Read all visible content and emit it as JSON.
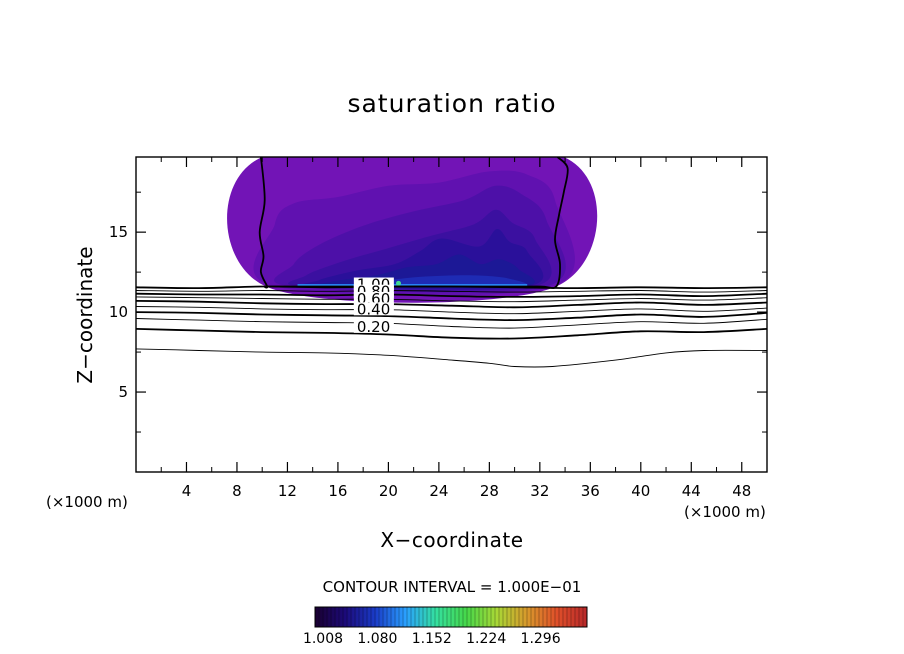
{
  "chart_data": {
    "type": "contour",
    "title": "saturation ratio",
    "xlabel": "X−coordinate",
    "ylabel": "Z−coordinate",
    "x_unit_left": "(×1000 m)",
    "x_unit_right": "(×1000 m)",
    "xlim": [
      0,
      50
    ],
    "ylim": [
      0,
      19.7
    ],
    "x_ticks": [
      {
        "v": 4,
        "label": "4"
      },
      {
        "v": 8,
        "label": "8"
      },
      {
        "v": 12,
        "label": "12"
      },
      {
        "v": 16,
        "label": "16"
      },
      {
        "v": 20,
        "label": "20"
      },
      {
        "v": 24,
        "label": "24"
      },
      {
        "v": 28,
        "label": "28"
      },
      {
        "v": 32,
        "label": "32"
      },
      {
        "v": 36,
        "label": "36"
      },
      {
        "v": 40,
        "label": "40"
      },
      {
        "v": 44,
        "label": "44"
      },
      {
        "v": 48,
        "label": "48"
      }
    ],
    "y_ticks": [
      {
        "v": 5,
        "label": "5"
      },
      {
        "v": 10,
        "label": "10"
      },
      {
        "v": 15,
        "label": "15"
      }
    ],
    "contour_interval_text": "CONTOUR INTERVAL = 1.000E−01",
    "colorbar": {
      "labels": [
        "1.008",
        "1.080",
        "1.152",
        "1.224",
        "1.296"
      ],
      "colors": [
        "#1a0030",
        "#1c0a7a",
        "#1a3cc8",
        "#2aa0ff",
        "#34e0a0",
        "#46d84a",
        "#a8d836",
        "#d89a2c",
        "#e0502a",
        "#b8282a"
      ]
    },
    "contour_labels": [
      {
        "text": "1.00",
        "x": 17.5,
        "z": 11.6
      },
      {
        "text": "0.80",
        "x": 17.5,
        "z": 11.15
      },
      {
        "text": "0.60",
        "x": 17.5,
        "z": 10.7
      },
      {
        "text": "0.40",
        "x": 17.5,
        "z": 10.05
      },
      {
        "text": "0.20",
        "x": 17.5,
        "z": 8.95
      }
    ],
    "contour_lines": [
      {
        "level": 1.0,
        "thick": true,
        "x": [
          0,
          5,
          10,
          15,
          20,
          25,
          30,
          35,
          40,
          45,
          50
        ],
        "z": [
          11.55,
          11.5,
          11.6,
          11.55,
          11.6,
          11.6,
          11.55,
          11.5,
          11.55,
          11.5,
          11.55
        ]
      },
      {
        "level": 0.9,
        "thick": false,
        "x": [
          0,
          5,
          10,
          15,
          20,
          25,
          30,
          35,
          40,
          45,
          50
        ],
        "z": [
          11.35,
          11.3,
          11.35,
          11.3,
          11.35,
          11.3,
          11.25,
          11.3,
          11.35,
          11.25,
          11.35
        ]
      },
      {
        "level": 0.8,
        "thick": true,
        "x": [
          0,
          5,
          10,
          15,
          20,
          25,
          30,
          35,
          40,
          45,
          50
        ],
        "z": [
          11.15,
          11.1,
          11.1,
          11.05,
          11.1,
          11.0,
          10.95,
          11.0,
          11.1,
          11.0,
          11.15
        ]
      },
      {
        "level": 0.7,
        "thick": false,
        "x": [
          0,
          5,
          10,
          15,
          20,
          25,
          30,
          35,
          40,
          45,
          50
        ],
        "z": [
          10.95,
          10.9,
          10.85,
          10.8,
          10.8,
          10.7,
          10.65,
          10.75,
          10.85,
          10.75,
          10.9
        ]
      },
      {
        "level": 0.6,
        "thick": true,
        "x": [
          0,
          5,
          10,
          15,
          20,
          25,
          30,
          35,
          40,
          45,
          50
        ],
        "z": [
          10.7,
          10.65,
          10.55,
          10.5,
          10.5,
          10.4,
          10.3,
          10.45,
          10.6,
          10.45,
          10.6
        ]
      },
      {
        "level": 0.5,
        "thick": false,
        "x": [
          0,
          5,
          10,
          15,
          20,
          25,
          30,
          35,
          40,
          45,
          50
        ],
        "z": [
          10.35,
          10.3,
          10.2,
          10.15,
          10.15,
          10.0,
          9.9,
          10.05,
          10.2,
          10.05,
          10.25
        ]
      },
      {
        "level": 0.4,
        "thick": true,
        "x": [
          0,
          5,
          10,
          15,
          20,
          25,
          30,
          35,
          40,
          45,
          50
        ],
        "z": [
          10.0,
          9.95,
          9.85,
          9.8,
          9.75,
          9.6,
          9.5,
          9.65,
          9.85,
          9.7,
          9.95
        ]
      },
      {
        "level": 0.3,
        "thick": false,
        "x": [
          0,
          5,
          10,
          15,
          20,
          25,
          30,
          35,
          40,
          45,
          50
        ],
        "z": [
          9.6,
          9.5,
          9.4,
          9.35,
          9.3,
          9.1,
          9.0,
          9.2,
          9.4,
          9.3,
          9.55
        ]
      },
      {
        "level": 0.2,
        "thick": true,
        "x": [
          0,
          5,
          10,
          15,
          20,
          25,
          30,
          35,
          40,
          45,
          50
        ],
        "z": [
          8.95,
          8.85,
          8.75,
          8.7,
          8.6,
          8.4,
          8.35,
          8.55,
          8.8,
          8.75,
          8.95
        ]
      },
      {
        "level": 0.1,
        "thick": false,
        "x": [
          0,
          5,
          10,
          15,
          20,
          25,
          28,
          30,
          33,
          38,
          42,
          45,
          50
        ],
        "z": [
          7.7,
          7.6,
          7.5,
          7.45,
          7.3,
          7.0,
          6.8,
          6.6,
          6.6,
          7.0,
          7.45,
          7.6,
          7.6
        ]
      }
    ],
    "cloud_region": {
      "x": [
        9.9,
        10.2,
        9.8,
        10.1,
        9.9,
        10.4,
        10.3,
        12.0,
        20.0,
        28.0,
        32.0,
        33.3,
        33.6,
        33.2,
        33.5,
        33.9,
        34.2,
        33.4
      ],
      "z": [
        19.7,
        17.0,
        15.0,
        13.5,
        12.5,
        11.6,
        11.6,
        11.6,
        11.6,
        11.6,
        11.6,
        11.6,
        13.0,
        14.5,
        16.0,
        17.5,
        19.0,
        19.7
      ]
    },
    "cloud_layers": [
      {
        "color": "#7214b6",
        "x": [
          10.3,
          33.3,
          33.9,
          10.0
        ],
        "z": [
          11.6,
          11.6,
          19.7,
          19.7
        ]
      },
      {
        "color": "#6011b0",
        "x": [
          11.0,
          33.0,
          33.2,
          31.0,
          28.0,
          24.0,
          20.0,
          16.0,
          12.5,
          11.0
        ],
        "z": [
          11.6,
          11.6,
          17.0,
          18.6,
          18.8,
          18.1,
          17.9,
          17.2,
          16.8,
          15.5
        ]
      },
      {
        "color": "#4d10a8",
        "x": [
          12.5,
          32.5,
          32.5,
          30.5,
          28.5,
          26.0,
          22.0,
          18.0,
          14.5,
          12.5
        ],
        "z": [
          11.6,
          11.6,
          15.8,
          17.4,
          17.9,
          17.0,
          16.3,
          15.4,
          14.2,
          13.0
        ]
      },
      {
        "color": "#3b10a0",
        "x": [
          13.5,
          31.5,
          31.6,
          29.8,
          28.5,
          26.8,
          23.5,
          20.0,
          16.5,
          13.5
        ],
        "z": [
          11.6,
          11.6,
          14.6,
          15.6,
          16.4,
          15.5,
          14.8,
          14.0,
          13.2,
          12.3
        ]
      },
      {
        "color": "#2a109a",
        "x": [
          14.5,
          31.0,
          31.0,
          29.6,
          28.6,
          27.2,
          24.2,
          22.5,
          20.5,
          17.5,
          14.5
        ],
        "z": [
          11.6,
          11.6,
          13.8,
          14.4,
          15.2,
          14.1,
          14.6,
          13.8,
          13.0,
          12.6,
          12.0
        ]
      },
      {
        "color": "#1c1896",
        "x": [
          15.5,
          30.5,
          30.3,
          28.8,
          27.3,
          25.6,
          23.8,
          21.5,
          19.0,
          15.5
        ],
        "z": [
          11.6,
          11.6,
          12.7,
          13.3,
          13.0,
          13.6,
          13.0,
          12.8,
          12.3,
          11.9
        ]
      },
      {
        "color": "#1e2bb4",
        "x": [
          16.5,
          30.0,
          29.5,
          26.5,
          22.5,
          19.0,
          16.5
        ],
        "z": [
          11.6,
          11.6,
          12.1,
          12.3,
          12.2,
          11.9,
          11.7
        ]
      }
    ],
    "cloud_base_band": {
      "color": "#2a8cff",
      "x": [
        12.8,
        31.0
      ],
      "z": [
        11.6,
        11.75
      ]
    },
    "cloud_spots": [
      {
        "color": "#40c8c0",
        "x": 20.0,
        "z": 11.85
      },
      {
        "color": "#40d890",
        "x": 20.8,
        "z": 11.8
      }
    ]
  }
}
